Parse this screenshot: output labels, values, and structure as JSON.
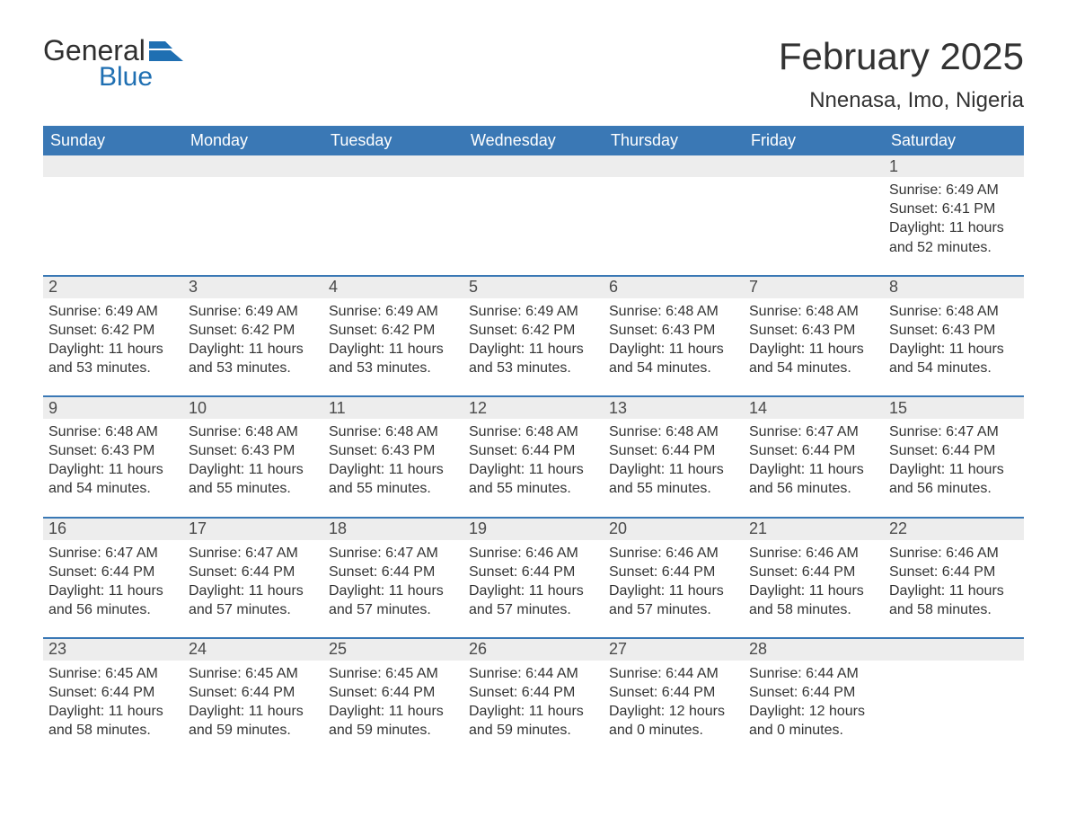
{
  "logo": {
    "word1": "General",
    "word2": "Blue"
  },
  "title": "February 2025",
  "location": "Nnenasa, Imo, Nigeria",
  "colors": {
    "header_bg": "#3a78b5",
    "header_text": "#ffffff",
    "band_bg": "#ededed",
    "divider": "#3a78b5",
    "text": "#333333",
    "logo_blue": "#1f6fb2",
    "background": "#ffffff"
  },
  "typography": {
    "title_fontsize": 42,
    "location_fontsize": 24,
    "dayhead_fontsize": 18,
    "daynum_fontsize": 18,
    "body_fontsize": 16
  },
  "day_headers": [
    "Sunday",
    "Monday",
    "Tuesday",
    "Wednesday",
    "Thursday",
    "Friday",
    "Saturday"
  ],
  "weeks": [
    [
      null,
      null,
      null,
      null,
      null,
      null,
      {
        "n": "1",
        "sunrise": "Sunrise: 6:49 AM",
        "sunset": "Sunset: 6:41 PM",
        "dl1": "Daylight: 11 hours",
        "dl2": "and 52 minutes."
      }
    ],
    [
      {
        "n": "2",
        "sunrise": "Sunrise: 6:49 AM",
        "sunset": "Sunset: 6:42 PM",
        "dl1": "Daylight: 11 hours",
        "dl2": "and 53 minutes."
      },
      {
        "n": "3",
        "sunrise": "Sunrise: 6:49 AM",
        "sunset": "Sunset: 6:42 PM",
        "dl1": "Daylight: 11 hours",
        "dl2": "and 53 minutes."
      },
      {
        "n": "4",
        "sunrise": "Sunrise: 6:49 AM",
        "sunset": "Sunset: 6:42 PM",
        "dl1": "Daylight: 11 hours",
        "dl2": "and 53 minutes."
      },
      {
        "n": "5",
        "sunrise": "Sunrise: 6:49 AM",
        "sunset": "Sunset: 6:42 PM",
        "dl1": "Daylight: 11 hours",
        "dl2": "and 53 minutes."
      },
      {
        "n": "6",
        "sunrise": "Sunrise: 6:48 AM",
        "sunset": "Sunset: 6:43 PM",
        "dl1": "Daylight: 11 hours",
        "dl2": "and 54 minutes."
      },
      {
        "n": "7",
        "sunrise": "Sunrise: 6:48 AM",
        "sunset": "Sunset: 6:43 PM",
        "dl1": "Daylight: 11 hours",
        "dl2": "and 54 minutes."
      },
      {
        "n": "8",
        "sunrise": "Sunrise: 6:48 AM",
        "sunset": "Sunset: 6:43 PM",
        "dl1": "Daylight: 11 hours",
        "dl2": "and 54 minutes."
      }
    ],
    [
      {
        "n": "9",
        "sunrise": "Sunrise: 6:48 AM",
        "sunset": "Sunset: 6:43 PM",
        "dl1": "Daylight: 11 hours",
        "dl2": "and 54 minutes."
      },
      {
        "n": "10",
        "sunrise": "Sunrise: 6:48 AM",
        "sunset": "Sunset: 6:43 PM",
        "dl1": "Daylight: 11 hours",
        "dl2": "and 55 minutes."
      },
      {
        "n": "11",
        "sunrise": "Sunrise: 6:48 AM",
        "sunset": "Sunset: 6:43 PM",
        "dl1": "Daylight: 11 hours",
        "dl2": "and 55 minutes."
      },
      {
        "n": "12",
        "sunrise": "Sunrise: 6:48 AM",
        "sunset": "Sunset: 6:44 PM",
        "dl1": "Daylight: 11 hours",
        "dl2": "and 55 minutes."
      },
      {
        "n": "13",
        "sunrise": "Sunrise: 6:48 AM",
        "sunset": "Sunset: 6:44 PM",
        "dl1": "Daylight: 11 hours",
        "dl2": "and 55 minutes."
      },
      {
        "n": "14",
        "sunrise": "Sunrise: 6:47 AM",
        "sunset": "Sunset: 6:44 PM",
        "dl1": "Daylight: 11 hours",
        "dl2": "and 56 minutes."
      },
      {
        "n": "15",
        "sunrise": "Sunrise: 6:47 AM",
        "sunset": "Sunset: 6:44 PM",
        "dl1": "Daylight: 11 hours",
        "dl2": "and 56 minutes."
      }
    ],
    [
      {
        "n": "16",
        "sunrise": "Sunrise: 6:47 AM",
        "sunset": "Sunset: 6:44 PM",
        "dl1": "Daylight: 11 hours",
        "dl2": "and 56 minutes."
      },
      {
        "n": "17",
        "sunrise": "Sunrise: 6:47 AM",
        "sunset": "Sunset: 6:44 PM",
        "dl1": "Daylight: 11 hours",
        "dl2": "and 57 minutes."
      },
      {
        "n": "18",
        "sunrise": "Sunrise: 6:47 AM",
        "sunset": "Sunset: 6:44 PM",
        "dl1": "Daylight: 11 hours",
        "dl2": "and 57 minutes."
      },
      {
        "n": "19",
        "sunrise": "Sunrise: 6:46 AM",
        "sunset": "Sunset: 6:44 PM",
        "dl1": "Daylight: 11 hours",
        "dl2": "and 57 minutes."
      },
      {
        "n": "20",
        "sunrise": "Sunrise: 6:46 AM",
        "sunset": "Sunset: 6:44 PM",
        "dl1": "Daylight: 11 hours",
        "dl2": "and 57 minutes."
      },
      {
        "n": "21",
        "sunrise": "Sunrise: 6:46 AM",
        "sunset": "Sunset: 6:44 PM",
        "dl1": "Daylight: 11 hours",
        "dl2": "and 58 minutes."
      },
      {
        "n": "22",
        "sunrise": "Sunrise: 6:46 AM",
        "sunset": "Sunset: 6:44 PM",
        "dl1": "Daylight: 11 hours",
        "dl2": "and 58 minutes."
      }
    ],
    [
      {
        "n": "23",
        "sunrise": "Sunrise: 6:45 AM",
        "sunset": "Sunset: 6:44 PM",
        "dl1": "Daylight: 11 hours",
        "dl2": "and 58 minutes."
      },
      {
        "n": "24",
        "sunrise": "Sunrise: 6:45 AM",
        "sunset": "Sunset: 6:44 PM",
        "dl1": "Daylight: 11 hours",
        "dl2": "and 59 minutes."
      },
      {
        "n": "25",
        "sunrise": "Sunrise: 6:45 AM",
        "sunset": "Sunset: 6:44 PM",
        "dl1": "Daylight: 11 hours",
        "dl2": "and 59 minutes."
      },
      {
        "n": "26",
        "sunrise": "Sunrise: 6:44 AM",
        "sunset": "Sunset: 6:44 PM",
        "dl1": "Daylight: 11 hours",
        "dl2": "and 59 minutes."
      },
      {
        "n": "27",
        "sunrise": "Sunrise: 6:44 AM",
        "sunset": "Sunset: 6:44 PM",
        "dl1": "Daylight: 12 hours",
        "dl2": "and 0 minutes."
      },
      {
        "n": "28",
        "sunrise": "Sunrise: 6:44 AM",
        "sunset": "Sunset: 6:44 PM",
        "dl1": "Daylight: 12 hours",
        "dl2": "and 0 minutes."
      },
      null
    ]
  ]
}
